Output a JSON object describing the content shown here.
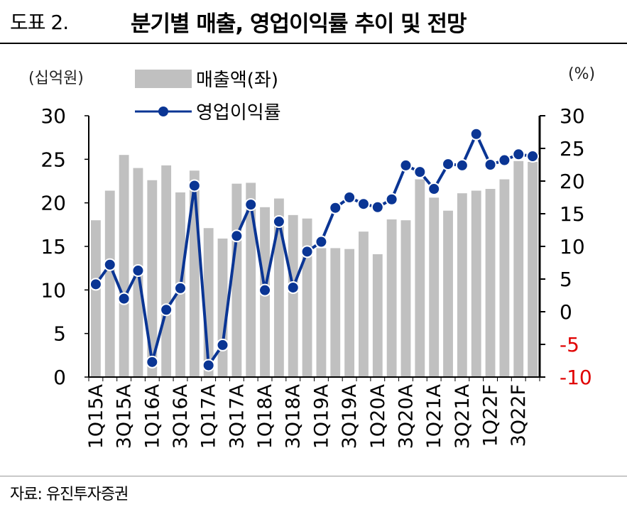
{
  "header": {
    "figure_no": "도표 2.",
    "title": "분기별 매출, 영업이익률 추이 및 전망"
  },
  "source": "자료: 유진투자증권",
  "colors": {
    "bar": "#c0c0c0",
    "line": "#0a3594",
    "negative_tick": "#e00000"
  },
  "chart_data": {
    "type": "bar+line",
    "title": "분기별 매출, 영업이익률 추이 및 전망",
    "left_unit": "(십억원)",
    "right_unit": "(%)",
    "categories": [
      "1Q15A",
      "2Q15A",
      "3Q15A",
      "4Q15A",
      "1Q16A",
      "2Q16A",
      "3Q16A",
      "4Q16A",
      "1Q17A",
      "2Q17A",
      "3Q17A",
      "4Q17A",
      "1Q18A",
      "2Q18A",
      "3Q18A",
      "4Q18A",
      "1Q19A",
      "2Q19A",
      "3Q19A",
      "4Q19A",
      "1Q20A",
      "2Q20A",
      "3Q20A",
      "4Q20A",
      "1Q21A",
      "2Q21A",
      "3Q21A",
      "4Q21A",
      "1Q22F",
      "2Q22F",
      "3Q22F",
      "4Q22F"
    ],
    "x_tick_labels": [
      "1Q15A",
      "3Q15A",
      "1Q16A",
      "3Q16A",
      "1Q17A",
      "3Q17A",
      "1Q18A",
      "3Q18A",
      "1Q19A",
      "3Q19A",
      "1Q20A",
      "3Q20A",
      "1Q21A",
      "3Q21A",
      "1Q22F",
      "3Q22F"
    ],
    "series": [
      {
        "name": "매출액(좌)",
        "type": "bar",
        "axis": "left",
        "values": [
          18.0,
          21.4,
          25.5,
          24.0,
          22.6,
          24.3,
          21.2,
          23.7,
          17.1,
          15.9,
          22.2,
          22.3,
          19.5,
          20.5,
          18.6,
          18.2,
          14.8,
          14.8,
          14.7,
          16.7,
          14.1,
          18.1,
          18.0,
          22.7,
          20.6,
          19.1,
          21.1,
          21.4,
          21.6,
          22.7,
          24.8,
          24.7
        ]
      },
      {
        "name": "영업이익률",
        "type": "line",
        "axis": "right",
        "values": [
          4.2,
          7.2,
          2.0,
          6.3,
          -7.7,
          0.3,
          3.6,
          19.3,
          -8.2,
          -5.1,
          11.6,
          16.4,
          3.3,
          13.8,
          3.7,
          9.2,
          10.7,
          15.9,
          17.5,
          16.5,
          16.0,
          17.2,
          22.4,
          21.4,
          18.8,
          22.6,
          22.4,
          27.2,
          22.5,
          23.2,
          24.1,
          23.8
        ]
      }
    ],
    "ylim_left": [
      0,
      30
    ],
    "yticks_left": [
      "0",
      "5",
      "10",
      "15",
      "20",
      "25",
      "30"
    ],
    "ylim_right": [
      -10,
      30
    ],
    "yticks_right": [
      "-10",
      "-5",
      "0",
      "5",
      "10",
      "15",
      "20",
      "25",
      "30"
    ],
    "legend_position": "top-left"
  }
}
